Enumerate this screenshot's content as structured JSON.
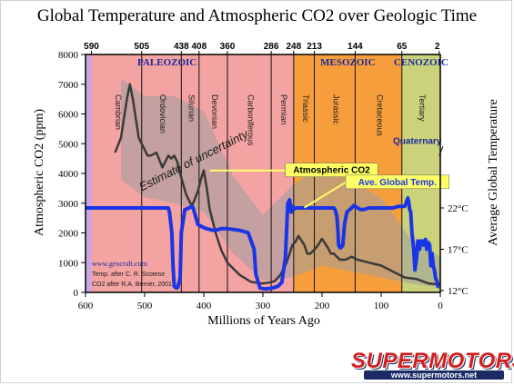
{
  "chart_data": {
    "type": "line",
    "title": "Global Temperature and Atmospheric CO2 over Geologic Time",
    "xlabel": "Millions of Years Ago",
    "ylabel_left": "Atmospheric CO2 (ppm)",
    "ylabel_right": "Average Global Temperature",
    "xlim": [
      600,
      0
    ],
    "ylim_left": [
      0,
      8000
    ],
    "left_ticks": [
      0,
      1000,
      2000,
      3000,
      4000,
      5000,
      6000,
      7000,
      8000
    ],
    "x_ticks": [
      600,
      500,
      400,
      300,
      200,
      100,
      0
    ],
    "right_ticks": [
      {
        "label": "12°C",
        "temp": 12
      },
      {
        "label": "17°C",
        "temp": 17
      },
      {
        "label": "22°C",
        "temp": 22
      }
    ],
    "top_ticks": [
      590,
      505,
      438,
      408,
      360,
      286,
      248,
      213,
      144,
      65,
      2
    ],
    "eras": [
      {
        "name": "PALEOZOIC",
        "from": 590,
        "to": 248,
        "color": "#f4a3a3"
      },
      {
        "name": "MESOZOIC",
        "from": 248,
        "to": 65,
        "color": "#f79e3c"
      },
      {
        "name": "CENOZOIC",
        "from": 65,
        "to": 0,
        "color": "#cbd27c"
      }
    ],
    "periods": [
      {
        "name": "Cambrian",
        "from": 590,
        "to": 505
      },
      {
        "name": "Ordovician",
        "from": 505,
        "to": 438
      },
      {
        "name": "Silurian",
        "from": 438,
        "to": 408
      },
      {
        "name": "Devonian",
        "from": 408,
        "to": 360
      },
      {
        "name": "Carboniferous",
        "from": 360,
        "to": 286
      },
      {
        "name": "Permian",
        "from": 286,
        "to": 248
      },
      {
        "name": "Triassic",
        "from": 248,
        "to": 213
      },
      {
        "name": "Jurassic",
        "from": 213,
        "to": 144
      },
      {
        "name": "Cretaceous",
        "from": 144,
        "to": 65
      },
      {
        "name": "Tertiary",
        "from": 65,
        "to": 2
      }
    ],
    "series": [
      {
        "name": "Atmospheric CO2",
        "color": "#3a3a3a",
        "axis": "left",
        "x": [
          550,
          540,
          530,
          525,
          520,
          510,
          500,
          495,
          490,
          480,
          470,
          460,
          455,
          450,
          445,
          440,
          430,
          420,
          410,
          405,
          400,
          395,
          390,
          380,
          370,
          360,
          340,
          320,
          300,
          290,
          280,
          270,
          260,
          250,
          245,
          240,
          230,
          225,
          220,
          210,
          200,
          190,
          185,
          180,
          170,
          160,
          150,
          140,
          120,
          100,
          80,
          60,
          40,
          20,
          10,
          5,
          0
        ],
        "y": [
          4700,
          5200,
          6500,
          7000,
          6500,
          5200,
          4800,
          4600,
          4600,
          4700,
          4200,
          4600,
          4500,
          4600,
          4400,
          4000,
          3300,
          2900,
          3400,
          3800,
          4100,
          3500,
          2800,
          2000,
          1400,
          1000,
          600,
          350,
          300,
          330,
          380,
          600,
          1000,
          1600,
          1700,
          1900,
          1600,
          1300,
          1300,
          1500,
          1800,
          1500,
          1300,
          1300,
          1100,
          1100,
          1200,
          1100,
          1000,
          900,
          700,
          500,
          450,
          300,
          280,
          300,
          280
        ]
      },
      {
        "name": "Ave. Global Temp.",
        "color": "#1a35e6",
        "axis": "right",
        "x": [
          600,
          560,
          520,
          500,
          480,
          460,
          458,
          454,
          452,
          450,
          446,
          444,
          440,
          438,
          432,
          425,
          420,
          418,
          414,
          410,
          400,
          395,
          390,
          385,
          380,
          370,
          360,
          340,
          325,
          315,
          312,
          305,
          295,
          285,
          275,
          268,
          262,
          258,
          255,
          254,
          253,
          252,
          251,
          250,
          248,
          246,
          244,
          240,
          230,
          220,
          200,
          180,
          178,
          175,
          173,
          172,
          170,
          168,
          165,
          162,
          158,
          150,
          146,
          140,
          135,
          130,
          120,
          100,
          90,
          80,
          70,
          60,
          55,
          53,
          52,
          51,
          50,
          48,
          45,
          43,
          40,
          38,
          35,
          33,
          30,
          28,
          25,
          23,
          20,
          18,
          16,
          14,
          12,
          10,
          8,
          6,
          4,
          2
        ],
        "temp": [
          22,
          22,
          22,
          22,
          22,
          22,
          21.5,
          19,
          15,
          12.5,
          12.3,
          12.4,
          13.5,
          19,
          21.8,
          22,
          22.2,
          22,
          21,
          20,
          19.6,
          19.5,
          19.4,
          19.3,
          19.3,
          19.5,
          19.5,
          19.3,
          19,
          17,
          14,
          12.3,
          12.2,
          12.3,
          12.5,
          13,
          16,
          22.5,
          23,
          22.5,
          21.8,
          21.5,
          22,
          22.2,
          22,
          21.9,
          22,
          22,
          22,
          22,
          22,
          22,
          21.8,
          21,
          19,
          17.5,
          17.2,
          17.2,
          17.5,
          20,
          21.5,
          22,
          22.3,
          22,
          21.8,
          21.8,
          22,
          22,
          22,
          22,
          22.2,
          22.2,
          23.2,
          22.5,
          21.8,
          21.7,
          21.5,
          19,
          17,
          14.5,
          16,
          18,
          17,
          18,
          18,
          17.5,
          18.2,
          17,
          17.8,
          17.5,
          15,
          16.5,
          15,
          14.5,
          13.5,
          13.2,
          12.5,
          12.5
        ]
      }
    ],
    "uncertainty_band": {
      "upper": [
        [
          540,
          7200
        ],
        [
          500,
          6600
        ],
        [
          450,
          6600
        ],
        [
          400,
          6100
        ],
        [
          350,
          3900
        ],
        [
          300,
          2600
        ],
        [
          250,
          3600
        ],
        [
          200,
          4300
        ],
        [
          150,
          3700
        ],
        [
          100,
          3200
        ],
        [
          50,
          1800
        ],
        [
          0,
          1200
        ]
      ],
      "lower": [
        [
          540,
          3800
        ],
        [
          500,
          3200
        ],
        [
          450,
          3000
        ],
        [
          400,
          2700
        ],
        [
          350,
          1300
        ],
        [
          300,
          400
        ],
        [
          250,
          500
        ],
        [
          200,
          900
        ],
        [
          150,
          700
        ],
        [
          100,
          500
        ],
        [
          50,
          300
        ],
        [
          0,
          150
        ]
      ],
      "color": "#9e9e9e"
    },
    "annotations": [
      {
        "text": "Estimate of uncertainty",
        "x": 505,
        "y": 3400,
        "color": "#1a1a1a"
      },
      {
        "text": "Atmospheric CO2",
        "x": 262,
        "y": 4100,
        "box": "#ffff66",
        "text_color": "#000000",
        "target": {
          "x": 390,
          "y": 4100
        }
      },
      {
        "text": "Ave. Global Temp.",
        "x": 160,
        "y": 3700,
        "box": "#ffff66",
        "text_color": "#1a35e6",
        "target": {
          "x": 230,
          "y": 2850
        }
      },
      {
        "text": "Quaternary",
        "x": 80,
        "y": 5000,
        "color": "#1a1a1a",
        "target": {
          "x": 2,
          "y": 4600
        }
      }
    ],
    "credits": [
      {
        "text": "www.geocraft.com",
        "color": "#1a2a9a"
      },
      {
        "text": "Temp. after C. R. Scotese",
        "color": "#1a1a1a"
      },
      {
        "text": "CO2 after R.A. Berner, 2001",
        "color": "#1a1a1a"
      }
    ]
  },
  "watermark": {
    "brand": "SUPERMOTORS",
    "url": "www.supermotors.net"
  }
}
